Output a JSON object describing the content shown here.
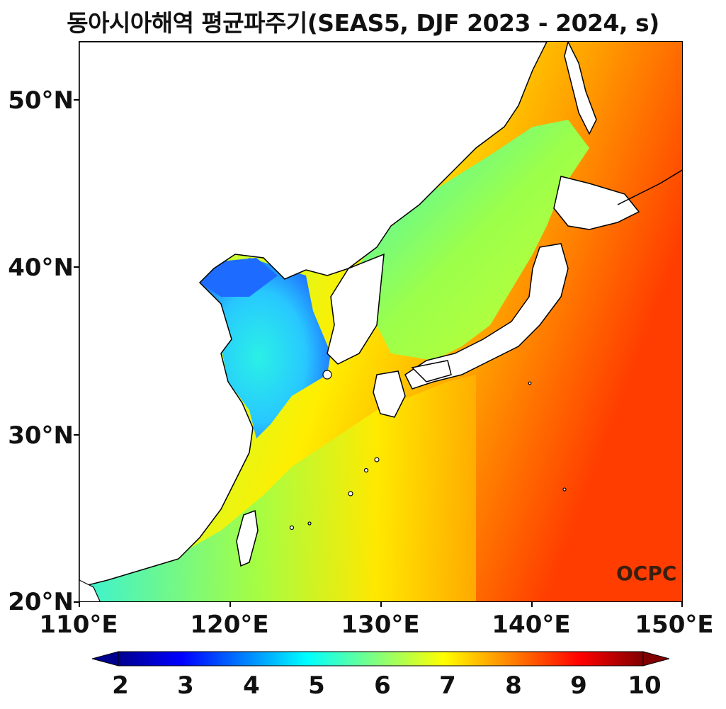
{
  "title": "동아시아해역 평균파주기(SEAS5, DJF 2023 - 2024, s)",
  "map": {
    "lat_labels": [
      "50°N",
      "40°N",
      "30°N",
      "20°N"
    ],
    "lon_labels": [
      "110°E",
      "120°E",
      "130°E",
      "140°E",
      "150°E"
    ],
    "logo_text": "OCPC",
    "colormap": "jet",
    "colors": {
      "deep_blue": "#0000a0",
      "blue": "#1e6bff",
      "cyan": "#2af0e6",
      "green": "#9cff4a",
      "yellow": "#ffee00",
      "orange": "#ff9a00",
      "red": "#ff3d00",
      "dark_red": "#7a0000",
      "land": "#ffffff",
      "coastline": "#000000"
    }
  },
  "colorbar": {
    "ticks": [
      "2",
      "3",
      "4",
      "5",
      "6",
      "7",
      "8",
      "9",
      "10"
    ],
    "min": 2,
    "max": 10
  }
}
